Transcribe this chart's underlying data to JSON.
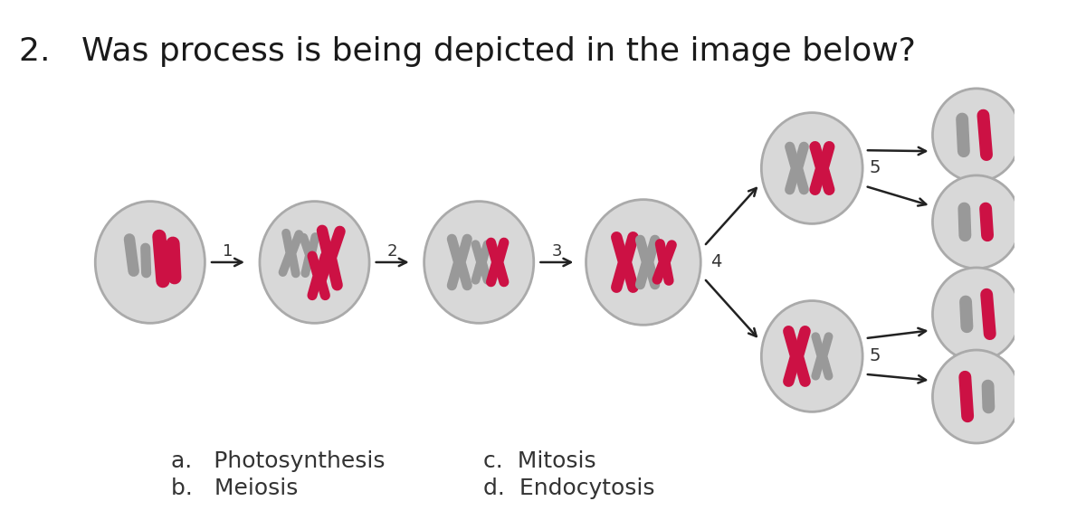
{
  "title": "2.   Was process is being depicted in the image below?",
  "title_fontsize": 26,
  "title_color": "#1a1a1a",
  "bg_color": "#ffffff",
  "answer_options_left": [
    "a.   Photosynthesis",
    "b.   Meiosis"
  ],
  "answer_options_right": [
    "c.  Mitosis",
    "d.  Endocytosis"
  ],
  "answer_fontsize": 18,
  "cell_color": "#d8d8d8",
  "cell_edgecolor": "#aaaaaa",
  "chr_gray": "#999999",
  "chr_red": "#cc1144",
  "arrow_color": "#222222",
  "step_labels": [
    "1",
    "2",
    "3",
    "4",
    "5",
    "5"
  ]
}
